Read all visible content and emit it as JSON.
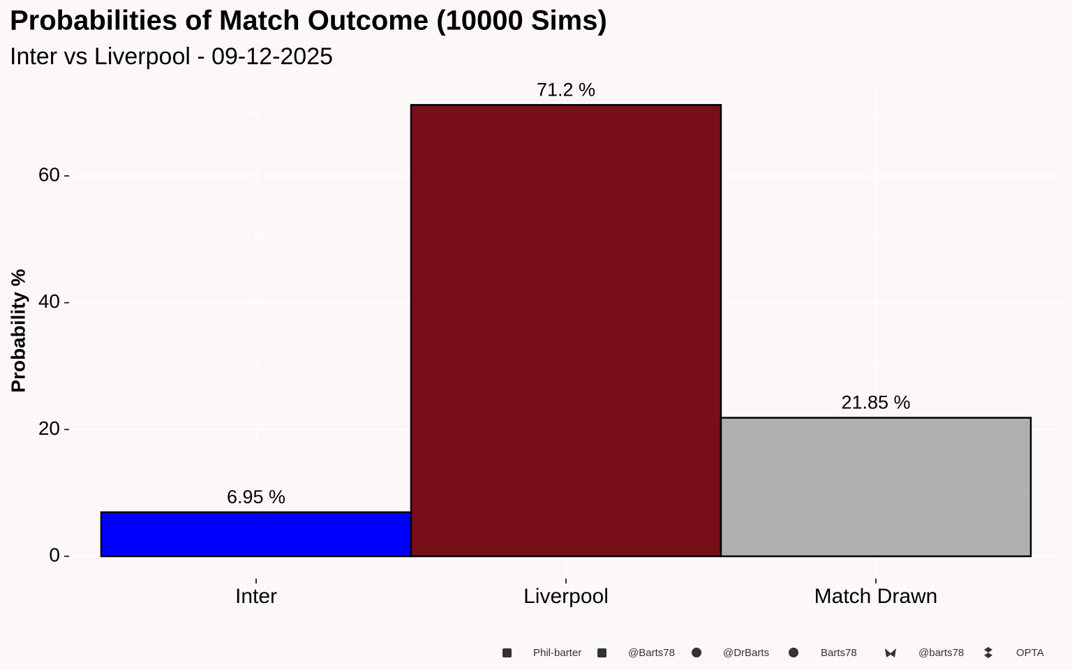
{
  "chart_data": {
    "type": "bar",
    "title": "Probabilities of Match Outcome (10000 Sims)",
    "subtitle": "Inter vs Liverpool - 09-12-2025",
    "y_label": "Probability %",
    "categories": [
      "Inter",
      "Liverpool",
      "Match Drawn"
    ],
    "values": [
      6.95,
      71.2,
      21.85
    ],
    "value_labels": [
      "6.95  %",
      "71.2  %",
      "21.85  %"
    ],
    "colors": [
      "#0000ff",
      "#770e18",
      "#b0b0b0"
    ],
    "ylim": [
      -3.56,
      74.76
    ],
    "yticks": [
      0,
      20,
      40,
      60
    ],
    "grid": true,
    "caption": [
      "Phil-barter",
      "@Barts78",
      "@DrBarts",
      "Barts78",
      "@barts78",
      "OPTA"
    ]
  }
}
